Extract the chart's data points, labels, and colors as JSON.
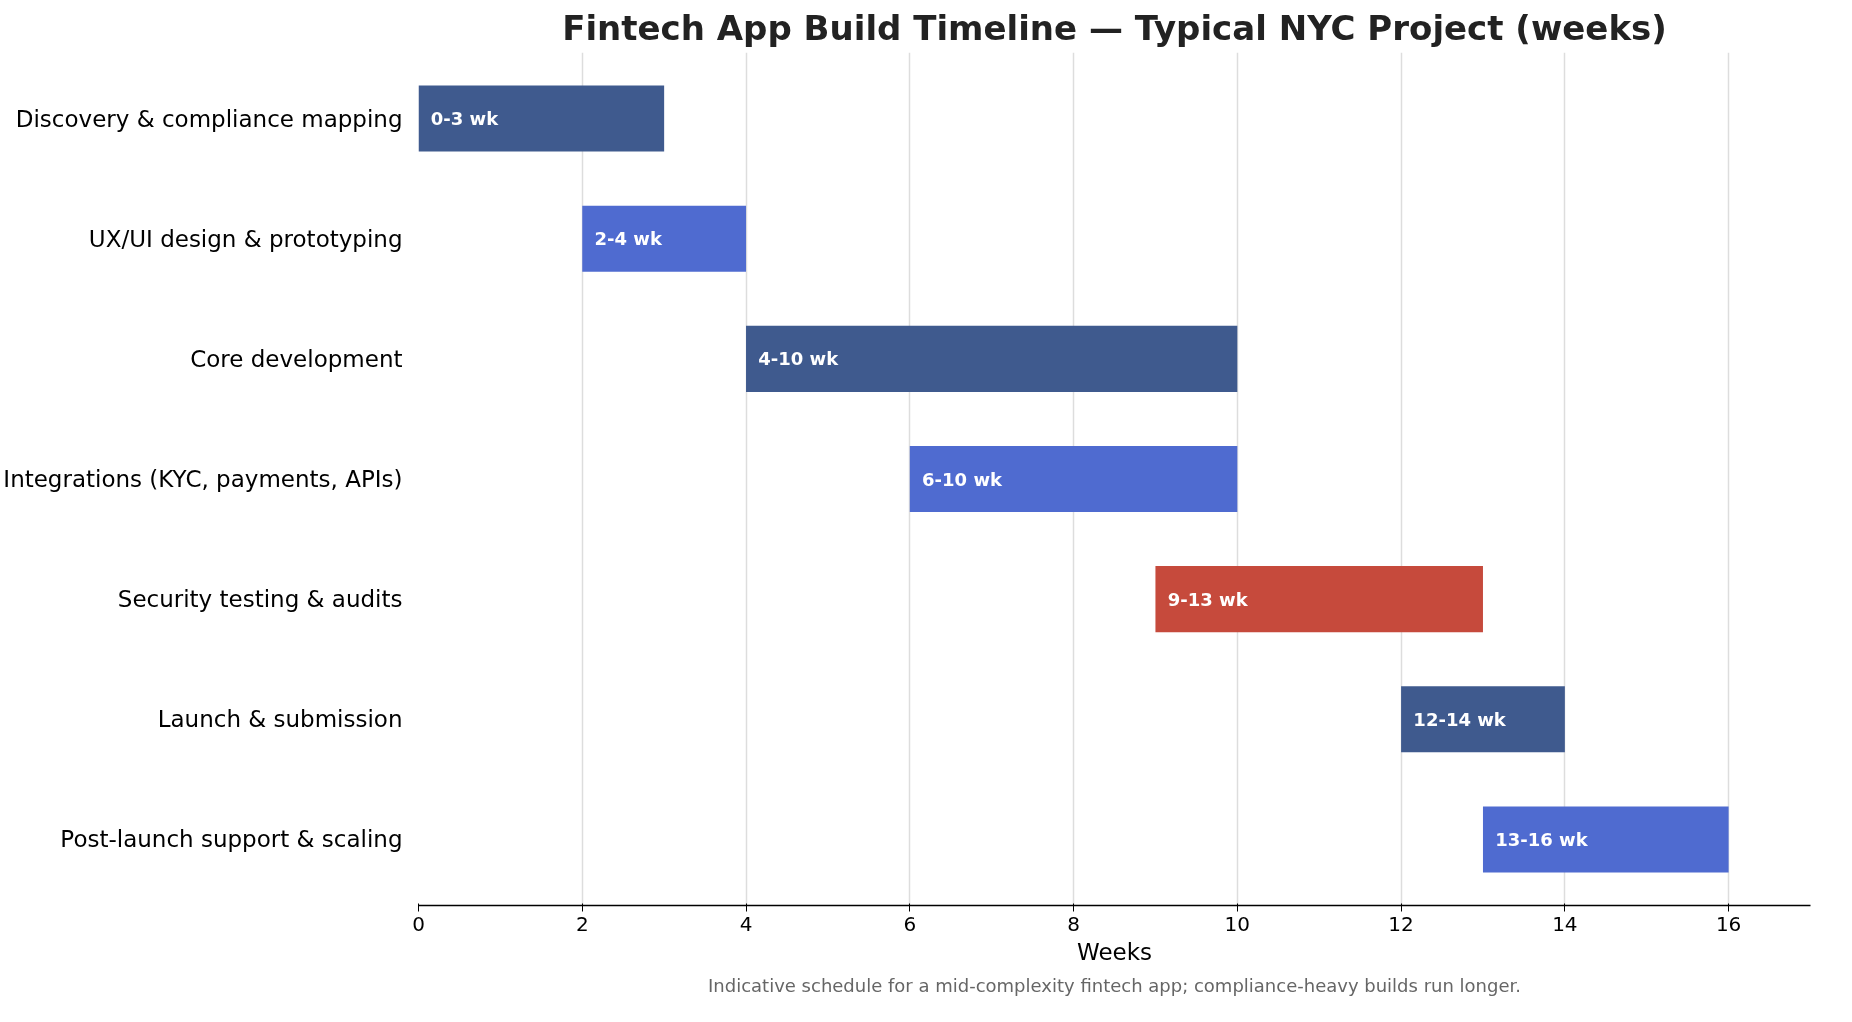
{
  "chart_data": {
    "type": "bar",
    "orientation": "horizontal",
    "title": "Fintech App Build Timeline — Typical NYC Project (weeks)",
    "xlabel": "Weeks",
    "categories": [
      "Discovery & compliance mapping",
      "UX/UI design & prototyping",
      "Core development",
      "Integrations (KYC, payments, APIs)",
      "Security testing & audits",
      "Launch & submission",
      "Post-launch support & scaling"
    ],
    "base": [
      0,
      2,
      4,
      6,
      9,
      12,
      13
    ],
    "values": [
      3,
      2,
      6,
      4,
      4,
      2,
      3
    ],
    "colors": [
      "#3f5a8e",
      "#4f6bd0",
      "#3f5a8e",
      "#4f6bd0",
      "#c64a3c",
      "#3f5a8e",
      "#4f6bd0"
    ],
    "value_labels": [
      "0-3 wk",
      "2-4 wk",
      "4-10 wk",
      "6-10 wk",
      "9-13 wk",
      "12-14 wk",
      "13-16 wk"
    ],
    "xlim": [
      0,
      17
    ],
    "xticks": [
      0,
      2,
      4,
      6,
      8,
      10,
      12,
      14,
      16
    ],
    "grid": "x",
    "annotations": [
      "Indicative schedule for a mid-complexity fintech app; compliance-heavy builds run longer."
    ]
  }
}
